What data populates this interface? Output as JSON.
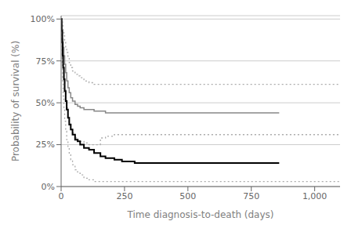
{
  "chart_data": {
    "type": "step",
    "xlabel": "Time diagnosis-to-death (days)",
    "ylabel": "Probability of survival (%)",
    "xlim": [
      0,
      1100
    ],
    "ylim": [
      0.0,
      1.02
    ],
    "xticks": [
      0,
      250,
      500,
      750,
      {
        "value": 1000,
        "label": "1,000"
      }
    ],
    "yticks": [
      {
        "value": 0.0,
        "label": "0%"
      },
      {
        "value": 0.25,
        "label": "25%"
      },
      {
        "value": 0.5,
        "label": "50%"
      },
      {
        "value": 0.75,
        "label": "75%"
      },
      {
        "value": 1.0,
        "label": "100%"
      }
    ],
    "grid": "y",
    "series": [
      {
        "x": [
          0,
          2,
          4,
          6,
          8,
          11,
          14,
          18,
          22,
          27,
          32,
          38,
          45,
          55,
          65,
          75,
          90,
          110,
          130,
          1100
        ],
        "values": [
          1.0,
          1.0,
          0.99,
          0.96,
          0.93,
          0.9,
          0.87,
          0.83,
          0.8,
          0.77,
          0.74,
          0.71,
          0.69,
          0.67,
          0.66,
          0.65,
          0.63,
          0.62,
          0.61,
          0.61
        ],
        "color": "#aaaaaa",
        "line_style": "dotted"
      },
      {
        "x": [
          0,
          2,
          4,
          6,
          8,
          11,
          14,
          18,
          22,
          27,
          32,
          38,
          45,
          55,
          65,
          75,
          90,
          110,
          130,
          155,
          175,
          210,
          240,
          260,
          1100
        ],
        "values": [
          1.0,
          0.87,
          0.74,
          0.63,
          0.54,
          0.46,
          0.39,
          0.33,
          0.28,
          0.23,
          0.19,
          0.16,
          0.13,
          0.1,
          0.08,
          0.07,
          0.05,
          0.04,
          0.03,
          0.03,
          0.03,
          0.03,
          0.03,
          0.03,
          0.03
        ],
        "color": "#aaaaaa",
        "line_style": "dotted"
      },
      {
        "x": [
          0,
          2,
          4,
          6,
          8,
          11,
          14,
          18,
          22,
          27,
          32,
          38,
          45,
          55,
          65,
          75,
          90,
          110,
          130,
          155,
          175,
          210,
          240,
          1100
        ],
        "values": [
          1.0,
          0.94,
          0.87,
          0.8,
          0.73,
          0.66,
          0.59,
          0.53,
          0.47,
          0.42,
          0.38,
          0.35,
          0.32,
          0.29,
          0.28,
          0.27,
          0.26,
          0.25,
          0.25,
          0.29,
          0.3,
          0.31,
          0.31,
          0.31
        ],
        "color": "#aaaaaa",
        "line_style": "dotted"
      },
      {
        "x": [
          0,
          2,
          4,
          6,
          8,
          11,
          14,
          18,
          22,
          27,
          32,
          38,
          45,
          55,
          65,
          75,
          90,
          110,
          130,
          155,
          175,
          210,
          240,
          860
        ],
        "values": [
          1.0,
          0.97,
          0.93,
          0.88,
          0.83,
          0.78,
          0.73,
          0.68,
          0.63,
          0.59,
          0.56,
          0.53,
          0.51,
          0.49,
          0.48,
          0.47,
          0.46,
          0.46,
          0.45,
          0.45,
          0.44,
          0.44,
          0.44,
          0.44
        ],
        "color": "#888888",
        "line_style": "solid"
      },
      {
        "x": [
          0,
          2,
          4,
          6,
          8,
          11,
          14,
          18,
          22,
          27,
          32,
          38,
          45,
          55,
          65,
          75,
          90,
          110,
          130,
          155,
          175,
          210,
          240,
          260,
          290,
          860
        ],
        "values": [
          1.0,
          0.93,
          0.86,
          0.78,
          0.71,
          0.64,
          0.57,
          0.51,
          0.46,
          0.41,
          0.37,
          0.34,
          0.31,
          0.28,
          0.27,
          0.25,
          0.23,
          0.22,
          0.2,
          0.18,
          0.17,
          0.16,
          0.15,
          0.15,
          0.14,
          0.14
        ],
        "color": "#000000",
        "line_style": "solid"
      }
    ]
  }
}
